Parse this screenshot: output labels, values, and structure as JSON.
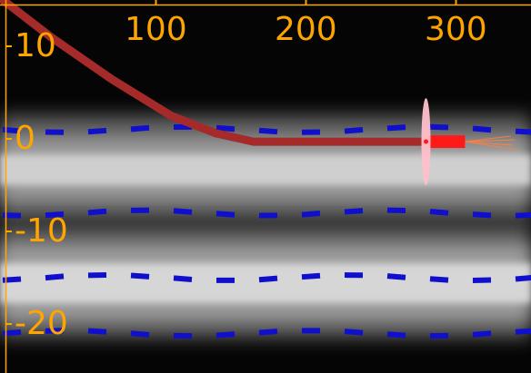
{
  "colors": {
    "background": "#050505",
    "axis": "#ffa500",
    "lane_marker": "#1010cc",
    "trajectory": "#a52a2a",
    "vehicle": "#ff1a1a",
    "uncertainty": "#ffc0cb",
    "heading_ray": "#ff8040"
  },
  "axes": {
    "x_ticks": [
      {
        "value": 100,
        "label": "100"
      },
      {
        "value": 200,
        "label": "200"
      },
      {
        "value": 300,
        "label": "300"
      }
    ],
    "y_ticks": [
      {
        "value": 10,
        "label": "10"
      },
      {
        "value": 0,
        "label": "0"
      },
      {
        "value": -10,
        "label": "-10"
      },
      {
        "value": -20,
        "label": "-20"
      }
    ]
  },
  "lanes": {
    "boundaries_y": [
      1,
      -8,
      -15,
      -21
    ]
  },
  "trajectory": {
    "points": [
      [
        -10,
        16
      ],
      [
        30,
        11
      ],
      [
        70,
        6.5
      ],
      [
        110,
        2.5
      ],
      [
        140,
        0.6
      ],
      [
        165,
        -0.3
      ],
      [
        200,
        -0.3
      ],
      [
        240,
        -0.3
      ],
      [
        280,
        -0.3
      ]
    ]
  },
  "vehicle": {
    "x_start": 280,
    "x_end": 306,
    "y": -0.3,
    "uncertainty_half_height": 4.7
  }
}
